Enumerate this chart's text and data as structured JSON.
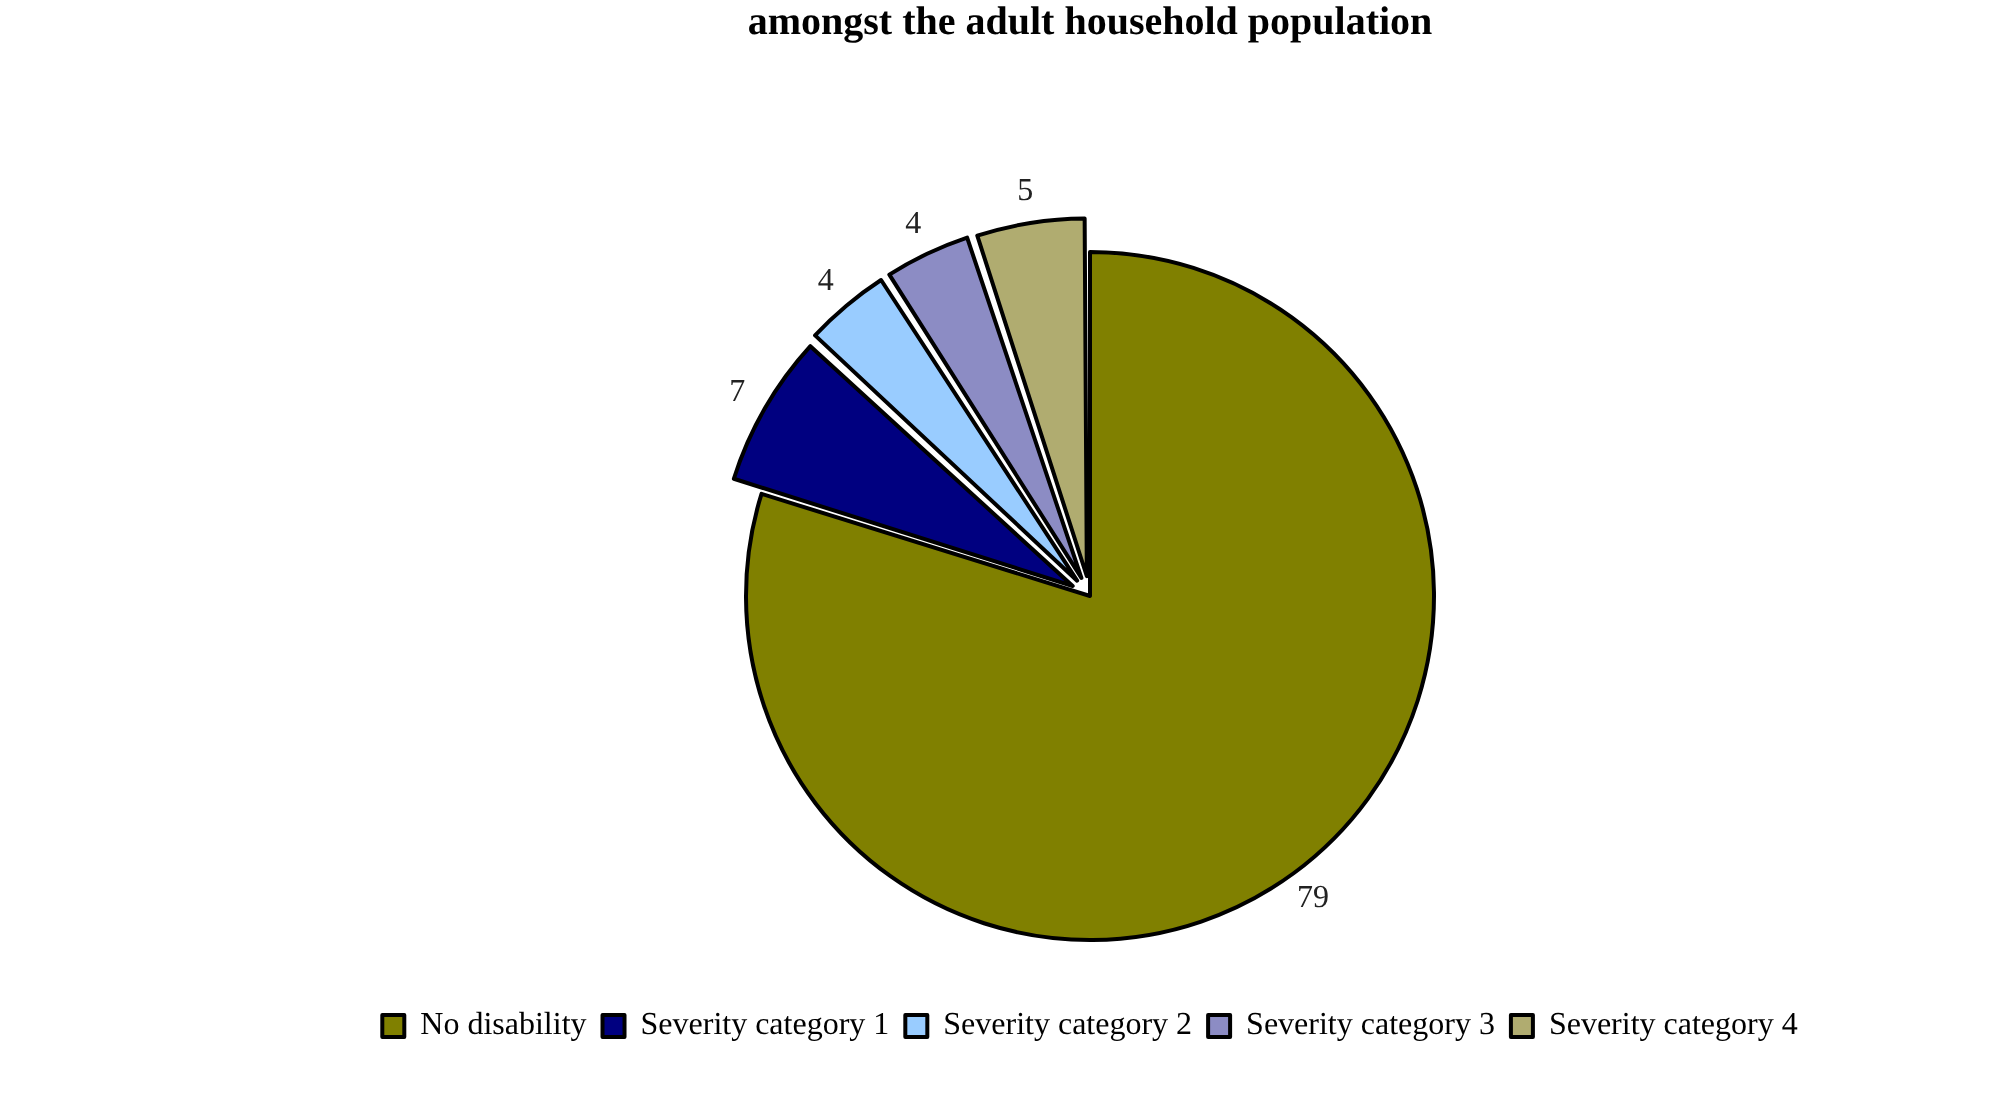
{
  "chart_data": {
    "type": "pie",
    "title": "amongst the adult household population",
    "categories": [
      "No disability",
      "Severity category 1",
      "Severity category 2",
      "Severity category 3",
      "Severity category 4"
    ],
    "values": [
      79,
      7,
      4,
      4,
      5
    ],
    "colors": [
      "#808000",
      "#000080",
      "#99ccff",
      "#8c8cc4",
      "#b0ac70"
    ],
    "data_labels": true,
    "legend": "bottom"
  }
}
